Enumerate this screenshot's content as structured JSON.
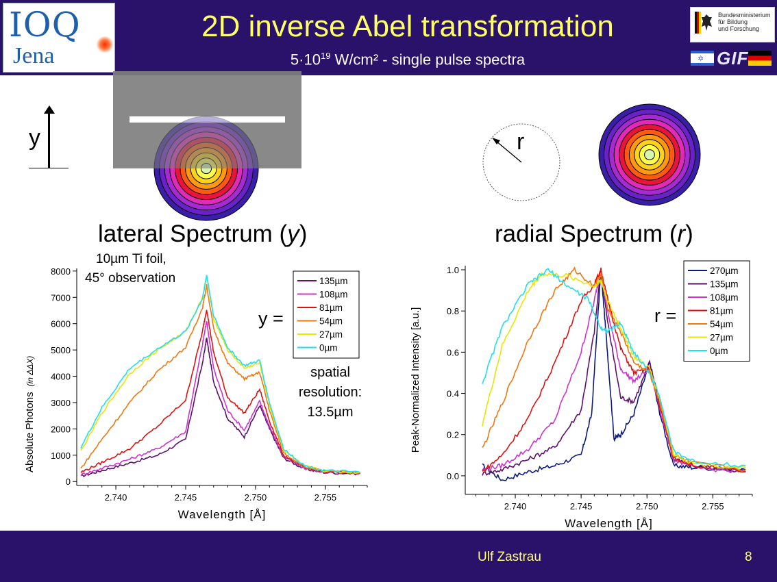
{
  "header": {
    "title": "2D inverse Abel transformation",
    "subtitle_base": "5·10",
    "subtitle_exp": "19",
    "subtitle_rest": " W/cm² - single pulse spectra",
    "logo_ioq_top": "IOQ",
    "logo_ioq_bottom": "Jena",
    "bmbf_lines": [
      "Bundesministerium",
      "für Bildung",
      "und Forschung"
    ],
    "gif_text": "GIF"
  },
  "diagram": {
    "y_label": "y",
    "r_label": "r",
    "ring_colors": [
      "#3a1ea8",
      "#6a22c8",
      "#a52ad2",
      "#e22ab8",
      "#e8143c",
      "#ff5a12",
      "#ff9a10",
      "#ffd21a",
      "#ffff50",
      "#d7f5b0"
    ]
  },
  "left": {
    "label_prefix": "lateral Spectrum (",
    "label_var": "y",
    "label_suffix": ")",
    "note1": "10µm Ti foil,",
    "note2": "45° observation",
    "eq": "y =",
    "resolution": [
      "spatial",
      "resolution:",
      "13.5µm"
    ]
  },
  "right": {
    "label_prefix": "radial Spectrum (",
    "label_var": "r",
    "label_suffix": ")",
    "eq": "r ="
  },
  "footer": {
    "author": "Ulf Zastrau",
    "page": "8"
  },
  "chart_data": [
    {
      "type": "line",
      "xlabel": "Wavelength [Å]",
      "ylabel": "Absolute Photons",
      "ylabel_unit": "(in ΔΔX)",
      "xlim": [
        2.7372,
        2.758
      ],
      "ylim": [
        -150,
        8100
      ],
      "xticks": [
        "2.740",
        "2.745",
        "2.750",
        "2.755"
      ],
      "yticks": [
        "0",
        "1000",
        "2000",
        "3000",
        "4000",
        "5000",
        "6000",
        "7000",
        "8000"
      ],
      "series": [
        {
          "name": "135µm",
          "color": "#5c0f6e",
          "values": [
            [
              2.7375,
              200
            ],
            [
              2.739,
              420
            ],
            [
              2.741,
              700
            ],
            [
              2.743,
              1000
            ],
            [
              2.745,
              1600
            ],
            [
              2.7462,
              4500
            ],
            [
              2.7465,
              5450
            ],
            [
              2.747,
              3800
            ],
            [
              2.748,
              2400
            ],
            [
              2.7492,
              1700
            ],
            [
              2.7503,
              2900
            ],
            [
              2.751,
              2000
            ],
            [
              2.752,
              900
            ],
            [
              2.7535,
              480
            ],
            [
              2.755,
              340
            ],
            [
              2.7575,
              300
            ]
          ]
        },
        {
          "name": "108µm",
          "color": "#cc33cc",
          "values": [
            [
              2.7375,
              260
            ],
            [
              2.739,
              500
            ],
            [
              2.741,
              850
            ],
            [
              2.743,
              1250
            ],
            [
              2.745,
              1900
            ],
            [
              2.7462,
              5200
            ],
            [
              2.7465,
              6100
            ],
            [
              2.747,
              4300
            ],
            [
              2.748,
              2700
            ],
            [
              2.7492,
              1950
            ],
            [
              2.7503,
              3050
            ],
            [
              2.751,
              2100
            ],
            [
              2.752,
              950
            ],
            [
              2.7535,
              500
            ],
            [
              2.755,
              350
            ],
            [
              2.7575,
              310
            ]
          ]
        },
        {
          "name": "81µm",
          "color": "#dd1111",
          "values": [
            [
              2.7375,
              350
            ],
            [
              2.739,
              720
            ],
            [
              2.741,
              1250
            ],
            [
              2.743,
              2100
            ],
            [
              2.745,
              3100
            ],
            [
              2.7462,
              5700
            ],
            [
              2.7465,
              6550
            ],
            [
              2.747,
              4900
            ],
            [
              2.748,
              3200
            ],
            [
              2.7492,
              2600
            ],
            [
              2.7503,
              3500
            ],
            [
              2.751,
              2300
            ],
            [
              2.752,
              1000
            ],
            [
              2.7535,
              520
            ],
            [
              2.755,
              370
            ],
            [
              2.7575,
              320
            ]
          ]
        },
        {
          "name": "54µm",
          "color": "#ee7711",
          "values": [
            [
              2.7375,
              500
            ],
            [
              2.739,
              1600
            ],
            [
              2.741,
              3000
            ],
            [
              2.743,
              4200
            ],
            [
              2.745,
              5100
            ],
            [
              2.7462,
              6600
            ],
            [
              2.7465,
              7450
            ],
            [
              2.747,
              5800
            ],
            [
              2.748,
              4500
            ],
            [
              2.7492,
              3900
            ],
            [
              2.7503,
              4150
            ],
            [
              2.751,
              2700
            ],
            [
              2.752,
              1100
            ],
            [
              2.7535,
              560
            ],
            [
              2.755,
              380
            ],
            [
              2.7575,
              330
            ]
          ]
        },
        {
          "name": "27µm",
          "color": "#e6e600",
          "values": [
            [
              2.7375,
              1150
            ],
            [
              2.739,
              2600
            ],
            [
              2.741,
              4100
            ],
            [
              2.743,
              5000
            ],
            [
              2.745,
              5700
            ],
            [
              2.7462,
              7000
            ],
            [
              2.7465,
              7800
            ],
            [
              2.747,
              6200
            ],
            [
              2.748,
              5000
            ],
            [
              2.7492,
              4300
            ],
            [
              2.7503,
              4500
            ],
            [
              2.751,
              2900
            ],
            [
              2.752,
              1200
            ],
            [
              2.7535,
              580
            ],
            [
              2.755,
              400
            ],
            [
              2.7575,
              340
            ]
          ]
        },
        {
          "name": "0µm",
          "color": "#22ddee",
          "values": [
            [
              2.7375,
              1300
            ],
            [
              2.739,
              2800
            ],
            [
              2.741,
              4300
            ],
            [
              2.743,
              5050
            ],
            [
              2.745,
              5700
            ],
            [
              2.7462,
              6950
            ],
            [
              2.7465,
              7850
            ],
            [
              2.747,
              6300
            ],
            [
              2.748,
              5100
            ],
            [
              2.7492,
              4400
            ],
            [
              2.7503,
              4600
            ],
            [
              2.751,
              3000
            ],
            [
              2.752,
              1250
            ],
            [
              2.7535,
              600
            ],
            [
              2.755,
              410
            ],
            [
              2.7575,
              350
            ]
          ]
        }
      ]
    },
    {
      "type": "line",
      "xlabel": "Wavelength [Å]",
      "ylabel": "Peak-Normalized Intensity [a.u.]",
      "xlim": [
        2.7362,
        2.758
      ],
      "ylim": [
        -0.09,
        1.02
      ],
      "xticks": [
        "2.740",
        "2.745",
        "2.750",
        "2.755"
      ],
      "yticks": [
        "0.0",
        "0.2",
        "0.4",
        "0.6",
        "0.8",
        "1.0"
      ],
      "series": [
        {
          "name": "270µm",
          "color": "#0a1a7a",
          "values": [
            [
              2.7375,
              0.05
            ],
            [
              2.739,
              -0.02
            ],
            [
              2.741,
              0.02
            ],
            [
              2.743,
              0.05
            ],
            [
              2.745,
              0.1
            ],
            [
              2.7458,
              0.3
            ],
            [
              2.7465,
              1.0
            ],
            [
              2.747,
              0.6
            ],
            [
              2.7475,
              0.18
            ],
            [
              2.748,
              0.2
            ],
            [
              2.749,
              0.3
            ],
            [
              2.7502,
              0.55
            ],
            [
              2.7508,
              0.35
            ],
            [
              2.752,
              0.05
            ],
            [
              2.7535,
              0.04
            ],
            [
              2.7575,
              0.03
            ]
          ]
        },
        {
          "name": "135µm",
          "color": "#5c0f6e",
          "values": [
            [
              2.7375,
              0.01
            ],
            [
              2.739,
              0.03
            ],
            [
              2.741,
              0.08
            ],
            [
              2.743,
              0.14
            ],
            [
              2.745,
              0.32
            ],
            [
              2.746,
              0.7
            ],
            [
              2.7465,
              1.0
            ],
            [
              2.747,
              0.75
            ],
            [
              2.748,
              0.38
            ],
            [
              2.749,
              0.36
            ],
            [
              2.7502,
              0.55
            ],
            [
              2.751,
              0.35
            ],
            [
              2.752,
              0.08
            ],
            [
              2.7535,
              0.05
            ],
            [
              2.7575,
              0.02
            ]
          ]
        },
        {
          "name": "108µm",
          "color": "#cc33cc",
          "values": [
            [
              2.7375,
              0.03
            ],
            [
              2.739,
              0.05
            ],
            [
              2.741,
              0.13
            ],
            [
              2.743,
              0.27
            ],
            [
              2.745,
              0.6
            ],
            [
              2.746,
              0.85
            ],
            [
              2.7465,
              1.0
            ],
            [
              2.747,
              0.8
            ],
            [
              2.748,
              0.52
            ],
            [
              2.749,
              0.46
            ],
            [
              2.7502,
              0.52
            ],
            [
              2.751,
              0.32
            ],
            [
              2.752,
              0.08
            ],
            [
              2.7535,
              0.04
            ],
            [
              2.7575,
              0.02
            ]
          ]
        },
        {
          "name": "81µm",
          "color": "#dd1111",
          "values": [
            [
              2.7375,
              0.02
            ],
            [
              2.739,
              0.1
            ],
            [
              2.741,
              0.28
            ],
            [
              2.743,
              0.55
            ],
            [
              2.745,
              0.85
            ],
            [
              2.746,
              0.93
            ],
            [
              2.7465,
              1.0
            ],
            [
              2.747,
              0.86
            ],
            [
              2.748,
              0.62
            ],
            [
              2.749,
              0.5
            ],
            [
              2.7502,
              0.52
            ],
            [
              2.751,
              0.33
            ],
            [
              2.752,
              0.09
            ],
            [
              2.7535,
              0.05
            ],
            [
              2.7575,
              0.02
            ]
          ]
        },
        {
          "name": "54µm",
          "color": "#ee7711",
          "values": [
            [
              2.7375,
              0.13
            ],
            [
              2.739,
              0.35
            ],
            [
              2.741,
              0.66
            ],
            [
              2.743,
              0.9
            ],
            [
              2.7445,
              1.0
            ],
            [
              2.746,
              0.92
            ],
            [
              2.7465,
              0.98
            ],
            [
              2.747,
              0.82
            ],
            [
              2.748,
              0.7
            ],
            [
              2.749,
              0.55
            ],
            [
              2.7502,
              0.5
            ],
            [
              2.751,
              0.35
            ],
            [
              2.752,
              0.1
            ],
            [
              2.7535,
              0.06
            ],
            [
              2.7575,
              0.03
            ]
          ]
        },
        {
          "name": "27µm",
          "color": "#e6e600",
          "values": [
            [
              2.7375,
              0.25
            ],
            [
              2.739,
              0.63
            ],
            [
              2.741,
              0.9
            ],
            [
              2.742,
              0.98
            ],
            [
              2.744,
              0.97
            ],
            [
              2.746,
              0.92
            ],
            [
              2.7465,
              0.95
            ],
            [
              2.747,
              0.85
            ],
            [
              2.748,
              0.72
            ],
            [
              2.749,
              0.58
            ],
            [
              2.7502,
              0.52
            ],
            [
              2.751,
              0.37
            ],
            [
              2.752,
              0.11
            ],
            [
              2.7535,
              0.06
            ],
            [
              2.7575,
              0.04
            ]
          ]
        },
        {
          "name": "0µm",
          "color": "#22ddee",
          "values": [
            [
              2.7375,
              0.45
            ],
            [
              2.739,
              0.72
            ],
            [
              2.741,
              0.93
            ],
            [
              2.7425,
              1.0
            ],
            [
              2.744,
              0.92
            ],
            [
              2.7455,
              0.86
            ],
            [
              2.7465,
              0.72
            ],
            [
              2.747,
              0.7
            ],
            [
              2.748,
              0.74
            ],
            [
              2.749,
              0.6
            ],
            [
              2.7502,
              0.5
            ],
            [
              2.751,
              0.38
            ],
            [
              2.752,
              0.12
            ],
            [
              2.7535,
              0.07
            ],
            [
              2.7575,
              0.05
            ]
          ]
        }
      ]
    }
  ]
}
